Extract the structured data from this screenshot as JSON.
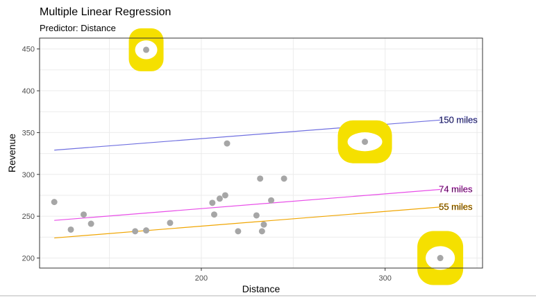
{
  "chart_data": {
    "type": "scatter",
    "title": "Multiple Linear Regression",
    "subtitle": "Predictor: Distance",
    "xlabel": "Distance",
    "ylabel": "Revenue",
    "xlim": [
      112,
      353
    ],
    "ylim": [
      188,
      463
    ],
    "x_ticks": [
      200,
      300
    ],
    "y_ticks": [
      200,
      250,
      300,
      350,
      400,
      450
    ],
    "grid": true,
    "theme": "bw",
    "points": [
      {
        "x": 120,
        "y": 267
      },
      {
        "x": 129,
        "y": 234
      },
      {
        "x": 136,
        "y": 252
      },
      {
        "x": 140,
        "y": 241
      },
      {
        "x": 164,
        "y": 232
      },
      {
        "x": 170,
        "y": 233
      },
      {
        "x": 170,
        "y": 449
      },
      {
        "x": 183,
        "y": 242
      },
      {
        "x": 206,
        "y": 266
      },
      {
        "x": 207,
        "y": 252
      },
      {
        "x": 210,
        "y": 271
      },
      {
        "x": 213,
        "y": 275
      },
      {
        "x": 214,
        "y": 337
      },
      {
        "x": 220,
        "y": 232
      },
      {
        "x": 230,
        "y": 251
      },
      {
        "x": 232,
        "y": 295
      },
      {
        "x": 233,
        "y": 232
      },
      {
        "x": 234,
        "y": 240
      },
      {
        "x": 238,
        "y": 269
      },
      {
        "x": 245,
        "y": 295
      },
      {
        "x": 289,
        "y": 339
      },
      {
        "x": 330,
        "y": 200
      }
    ],
    "point_color": "#a6a6a6",
    "series": [
      {
        "name": "150 miles",
        "x": [
          120,
          330
        ],
        "y": [
          329,
          365
        ],
        "color": "#6f6fe0"
      },
      {
        "name": "74 miles",
        "x": [
          120,
          330
        ],
        "y": [
          245,
          282
        ],
        "color": "#e84de8"
      },
      {
        "name": "55 miles",
        "x": [
          120,
          330
        ],
        "y": [
          224,
          261
        ],
        "color": "#f0a500"
      }
    ],
    "annotation_color": "#f5e000"
  }
}
